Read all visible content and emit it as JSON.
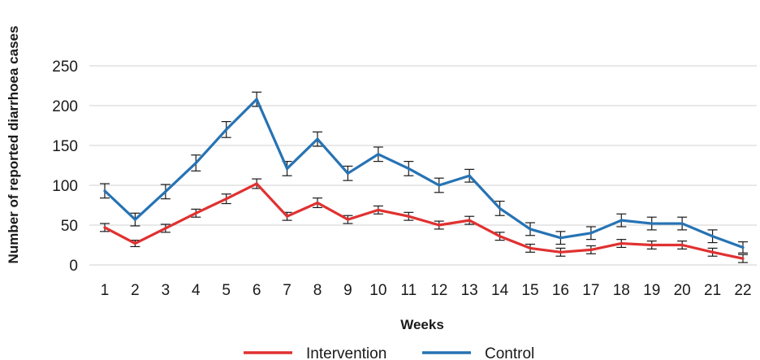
{
  "chart_data": {
    "type": "line",
    "xlabel": "Weeks",
    "ylabel": "Number of reported diarrhoea cases",
    "categories": [
      "1",
      "2",
      "3",
      "4",
      "5",
      "6",
      "7",
      "8",
      "9",
      "10",
      "11",
      "12",
      "13",
      "14",
      "15",
      "16",
      "17",
      "18",
      "19",
      "20",
      "21",
      "22"
    ],
    "ylim": [
      0,
      250
    ],
    "yticks": [
      0,
      50,
      100,
      150,
      200,
      250
    ],
    "grid": true,
    "legend_position": "bottom",
    "series": [
      {
        "name": "Intervention",
        "color": "#e03130",
        "values": [
          47,
          27,
          46,
          65,
          83,
          102,
          61,
          78,
          57,
          69,
          61,
          50,
          56,
          36,
          21,
          16,
          19,
          27,
          25,
          25,
          16,
          8
        ],
        "error": [
          5,
          4,
          5,
          5,
          6,
          6,
          5,
          6,
          5,
          5,
          5,
          5,
          5,
          5,
          5,
          5,
          5,
          5,
          5,
          5,
          5,
          5
        ]
      },
      {
        "name": "Control",
        "color": "#2673b4",
        "values": [
          93,
          57,
          92,
          128,
          170,
          208,
          121,
          158,
          115,
          139,
          121,
          100,
          112,
          71,
          45,
          34,
          40,
          56,
          52,
          52,
          36,
          22
        ],
        "error": [
          9,
          8,
          9,
          10,
          10,
          9,
          9,
          9,
          9,
          9,
          9,
          9,
          8,
          9,
          8,
          8,
          8,
          8,
          8,
          8,
          8,
          7
        ]
      }
    ]
  }
}
